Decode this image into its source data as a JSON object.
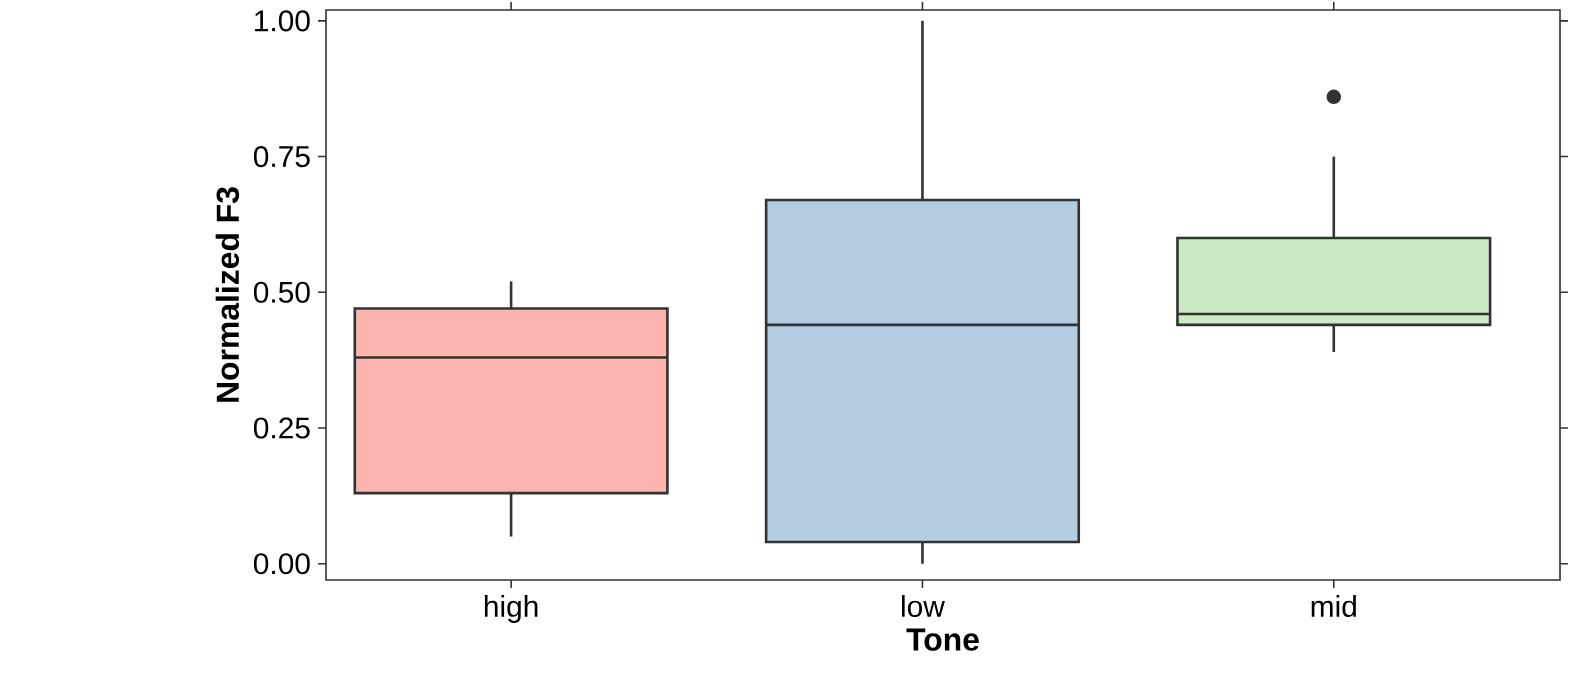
{
  "chart_data": {
    "type": "box",
    "xlabel": "Tone",
    "ylabel": "Normalized F3",
    "categories": [
      "high",
      "low",
      "mid"
    ],
    "colors": [
      "#fbb4ae",
      "#b3cde3",
      "#ccebc5"
    ],
    "boxes": [
      {
        "low": 0.05,
        "q1": 0.13,
        "median": 0.38,
        "q3": 0.47,
        "high": 0.52
      },
      {
        "low": 0.0,
        "q1": 0.04,
        "median": 0.44,
        "q3": 0.67,
        "high": 1.0
      },
      {
        "low": 0.39,
        "q1": 0.44,
        "median": 0.46,
        "q3": 0.6,
        "high": 0.75,
        "outliers": [
          0.86
        ]
      }
    ],
    "ylim": [
      -0.03,
      1.02
    ],
    "yticks": [
      {
        "value": 0,
        "label": "0.00"
      },
      {
        "value": 0.25,
        "label": "0.25"
      },
      {
        "value": 0.5,
        "label": "0.50"
      },
      {
        "value": 0.75,
        "label": "0.75"
      },
      {
        "value": 1,
        "label": "1.00"
      }
    ]
  }
}
